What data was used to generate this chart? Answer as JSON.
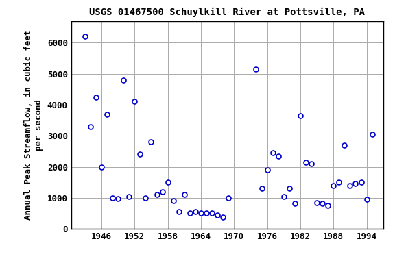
{
  "title": "USGS 01467500 Schuylkill River at Pottsville, PA",
  "ylabel_line1": "Annual Peak Streamflow, in cubic feet",
  "ylabel_line2": "per second",
  "years": [
    1943,
    1944,
    1945,
    1946,
    1947,
    1948,
    1949,
    1950,
    1951,
    1952,
    1953,
    1954,
    1955,
    1956,
    1957,
    1958,
    1959,
    1960,
    1961,
    1962,
    1963,
    1964,
    1965,
    1966,
    1967,
    1968,
    1969,
    1974,
    1975,
    1976,
    1977,
    1978,
    1979,
    1980,
    1981,
    1982,
    1983,
    1984,
    1985,
    1986,
    1987,
    1988,
    1989,
    1990,
    1991,
    1992,
    1993,
    1994,
    1995
  ],
  "flows": [
    6200,
    3300,
    4250,
    2000,
    3700,
    1000,
    980,
    4800,
    1050,
    4100,
    2400,
    1000,
    2800,
    1100,
    1200,
    1500,
    900,
    550,
    1100,
    500,
    550,
    500,
    500,
    500,
    450,
    380,
    1000,
    5150,
    1300,
    1900,
    2450,
    2350,
    1050,
    1300,
    820,
    3650,
    2150,
    2100,
    850,
    820,
    750,
    1400,
    1500,
    2700,
    1400,
    1450,
    1500,
    950,
    3050
  ],
  "marker_color": "#0000CC",
  "marker_facecolor": "white",
  "marker_size": 5,
  "xlim": [
    1940.5,
    1997
  ],
  "ylim": [
    0,
    6700
  ],
  "yticks": [
    0,
    1000,
    2000,
    3000,
    4000,
    5000,
    6000
  ],
  "xticks": [
    1946,
    1952,
    1958,
    1964,
    1970,
    1976,
    1982,
    1988,
    1994
  ],
  "grid_color": "#aaaaaa",
  "background_color": "#ffffff",
  "title_fontsize": 10,
  "label_fontsize": 9,
  "tick_fontsize": 9
}
